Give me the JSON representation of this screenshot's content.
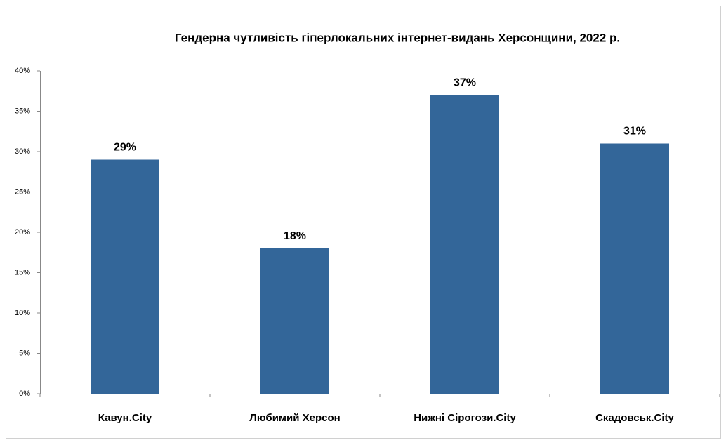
{
  "chart_data": {
    "type": "bar",
    "title": "Гендерна чутливість  гіперлокальних  інтернет-видань  Херсонщини, 2022 р.",
    "categories": [
      "Кавун.City",
      "Любимий Херсон",
      "Нижні Сірогози.City",
      "Скадовськ.City"
    ],
    "values": [
      29,
      18,
      37,
      31
    ],
    "value_labels": [
      "29%",
      "18%",
      "37%",
      "31%"
    ],
    "color": "#336699",
    "ylim": [
      0,
      40
    ],
    "yticks": [
      {
        "value": 0,
        "label": "0%"
      },
      {
        "value": 5,
        "label": "5%"
      },
      {
        "value": 10,
        "label": "10%"
      },
      {
        "value": 15,
        "label": "15%"
      },
      {
        "value": 20,
        "label": "20%"
      },
      {
        "value": 25,
        "label": "25%"
      },
      {
        "value": 30,
        "label": "30%"
      },
      {
        "value": 35,
        "label": "35%"
      },
      {
        "value": 40,
        "label": "40%"
      }
    ],
    "grid": false
  }
}
